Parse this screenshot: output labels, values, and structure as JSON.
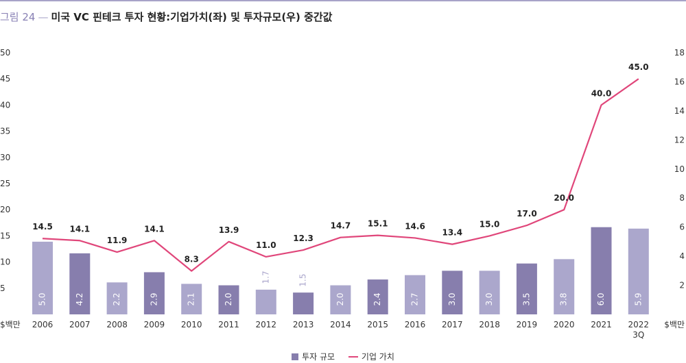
{
  "title": {
    "figure": "그림 24",
    "text": "미국 VC 핀테크 투자 현황:기업가치(좌) 및 투자규모(우) 중간값"
  },
  "colors": {
    "bar_light": "#aba7cc",
    "bar_dark": "#877ead",
    "line": "#e0467a",
    "axis_text": "#333333",
    "title_accent": "#8880b4"
  },
  "chart_data": {
    "type": "bar",
    "categories": [
      "2006",
      "2007",
      "2008",
      "2009",
      "2010",
      "2011",
      "2012",
      "2013",
      "2014",
      "2015",
      "2016",
      "2017",
      "2018",
      "2019",
      "2020",
      "2021",
      "2022\n3Q"
    ],
    "left_axis": {
      "ticks": [
        "5",
        "10",
        "15",
        "20",
        "25",
        "30",
        "35",
        "40",
        "45",
        "50"
      ],
      "ylim": [
        0,
        50
      ],
      "unit": "$백만"
    },
    "right_axis": {
      "ticks": [
        "2",
        "4",
        "6",
        "8",
        "10",
        "12",
        "14",
        "16",
        "18"
      ],
      "ylim": [
        0,
        18
      ],
      "unit": "$백만"
    },
    "series": [
      {
        "name": "투자 규모",
        "type": "bar",
        "axis": "right",
        "values": [
          5.0,
          4.2,
          2.2,
          2.9,
          2.1,
          2.0,
          1.7,
          1.5,
          2.0,
          2.4,
          2.7,
          3.0,
          3.0,
          3.5,
          3.8,
          6.0,
          5.9
        ],
        "labels": [
          "5.0",
          "4.2",
          "2.2",
          "2.9",
          "2.1",
          "2.0",
          "1.7",
          "1.5",
          "2.0",
          "2.4",
          "2.7",
          "3.0",
          "3.0",
          "3.5",
          "3.8",
          "6.0",
          "5.9"
        ],
        "shade": [
          "light",
          "dark",
          "light",
          "dark",
          "light",
          "dark",
          "light",
          "dark",
          "light",
          "dark",
          "light",
          "dark",
          "light",
          "dark",
          "light",
          "dark",
          "light"
        ]
      },
      {
        "name": "기업 가치",
        "type": "line",
        "axis": "left",
        "values": [
          14.5,
          14.1,
          11.9,
          14.1,
          8.3,
          13.9,
          11.0,
          12.3,
          14.7,
          15.1,
          14.6,
          13.4,
          15.0,
          17.0,
          20.0,
          40.0,
          45.0
        ],
        "labels": [
          "14.5",
          "14.1",
          "11.9",
          "14.1",
          "8.3",
          "13.9",
          "11.0",
          "12.3",
          "14.7",
          "15.1",
          "14.6",
          "13.4",
          "15.0",
          "17.0",
          "20.0",
          "40.0",
          "45.0"
        ]
      }
    ],
    "legend_position": "bottom",
    "grid": false
  }
}
